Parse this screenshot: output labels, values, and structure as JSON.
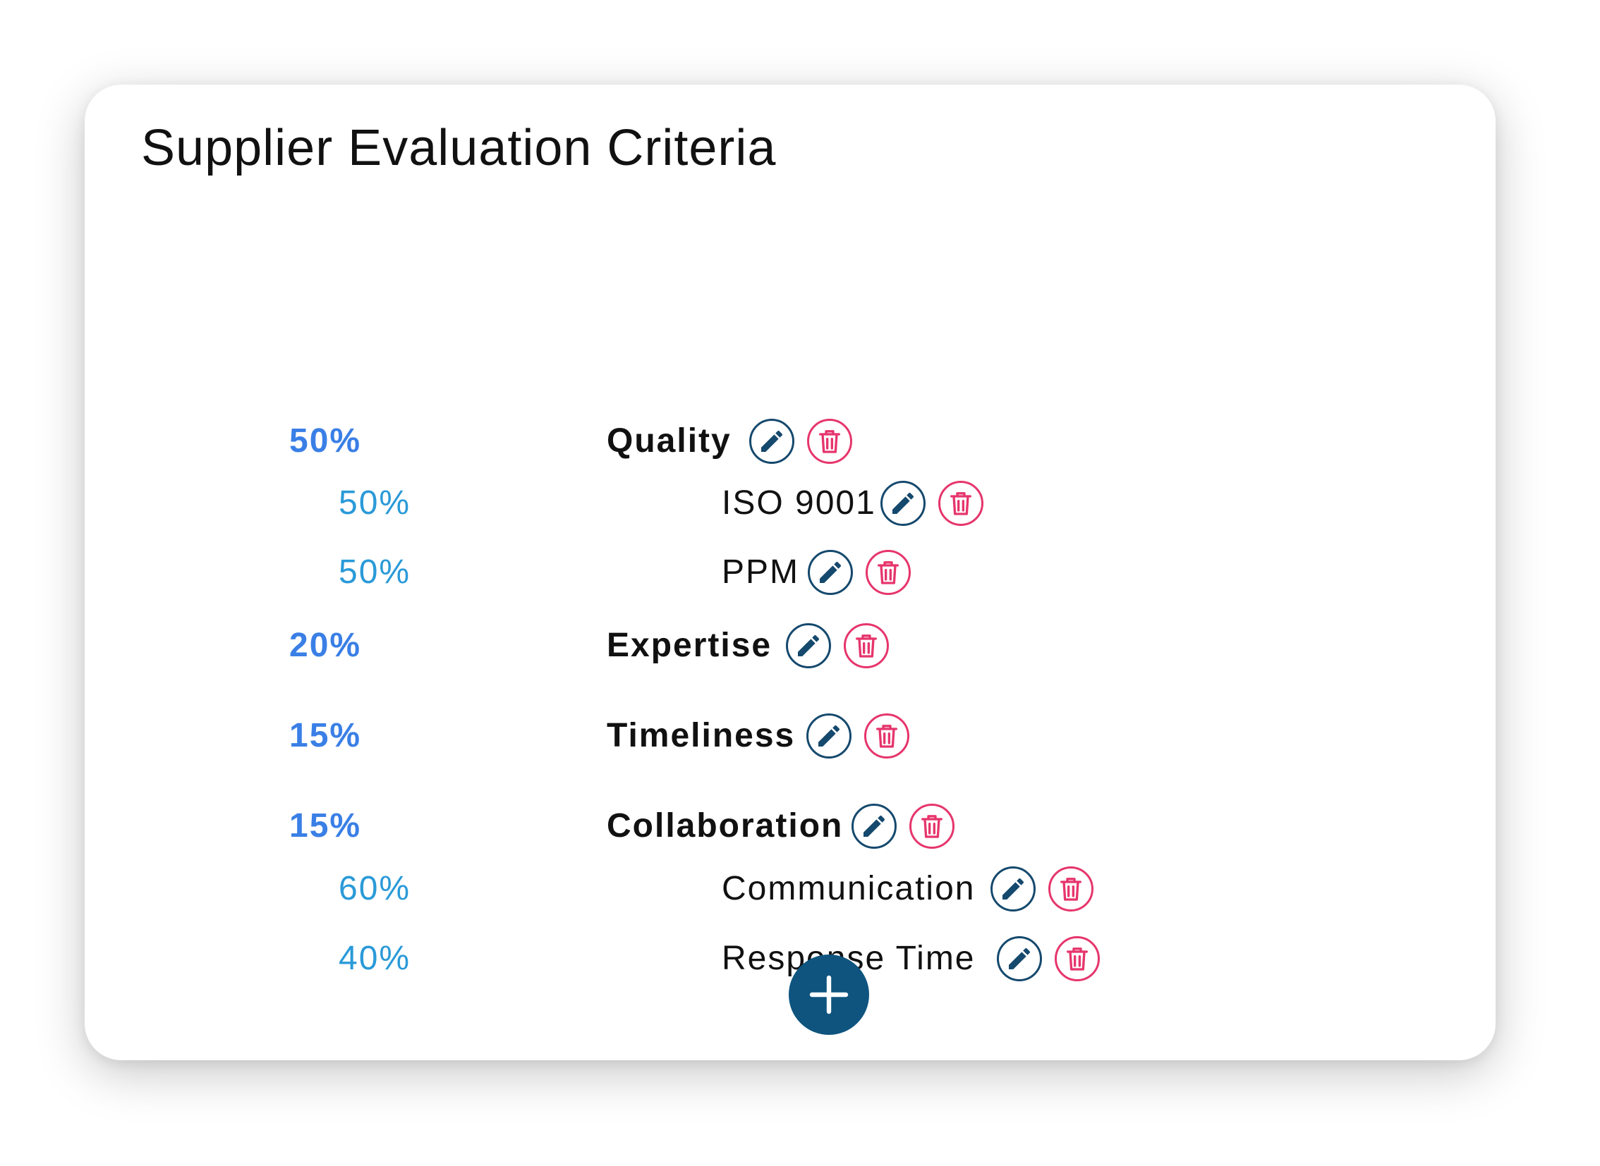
{
  "title": "Supplier Evaluation Criteria",
  "criteria": [
    {
      "level": "main",
      "weight": "50%",
      "name": "Quality"
    },
    {
      "level": "sub",
      "weight": "50%",
      "name": "ISO 9001"
    },
    {
      "level": "sub",
      "weight": "50%",
      "name": "PPM"
    },
    {
      "level": "main",
      "weight": "20%",
      "name": "Expertise"
    },
    {
      "level": "main",
      "weight": "15%",
      "name": "Timeliness"
    },
    {
      "level": "main",
      "weight": "15%",
      "name": "Collaboration"
    },
    {
      "level": "sub",
      "weight": "60%",
      "name": "Communication"
    },
    {
      "level": "sub",
      "weight": "40%",
      "name": "Response Time"
    }
  ],
  "icons": {
    "edit": "pencil-icon",
    "delete": "trash-icon",
    "add": "plus-icon"
  },
  "colors": {
    "main_weight": "#3a7fe6",
    "sub_weight": "#2a9ad8",
    "edit": "#15496d",
    "delete": "#e6356c",
    "add_button": "#0e547f"
  }
}
